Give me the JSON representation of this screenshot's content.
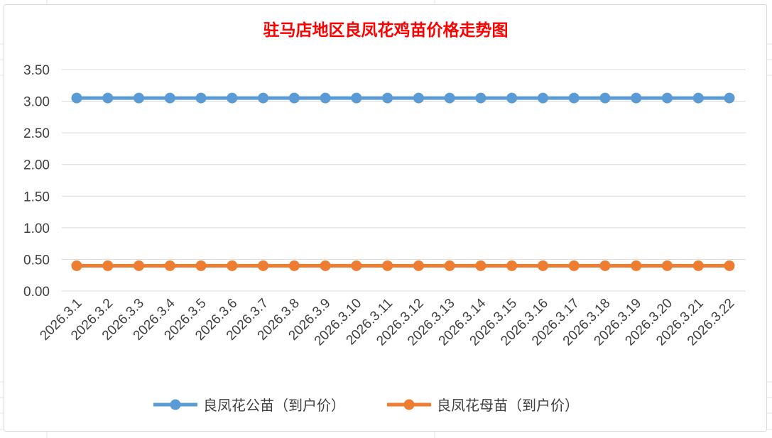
{
  "chart_data": {
    "type": "line",
    "title": "驻马店地区良凤花鸡苗价格走势图",
    "categories": [
      "2026.3.1",
      "2026.3.2",
      "2026.3.3",
      "2026.3.4",
      "2026.3.5",
      "2026.3.6",
      "2026.3.7",
      "2026.3.8",
      "2026.3.9",
      "2026.3.10",
      "2026.3.11",
      "2026.3.12",
      "2026.3.13",
      "2026.3.14",
      "2026.3.15",
      "2026.3.16",
      "2026.3.17",
      "2026.3.18",
      "2026.3.19",
      "2026.3.20",
      "2026.3.21",
      "2026.3.22"
    ],
    "series": [
      {
        "name": "良凤花公苗（到户价）",
        "color": "#5b9bd5",
        "values": [
          3.05,
          3.05,
          3.05,
          3.05,
          3.05,
          3.05,
          3.05,
          3.05,
          3.05,
          3.05,
          3.05,
          3.05,
          3.05,
          3.05,
          3.05,
          3.05,
          3.05,
          3.05,
          3.05,
          3.05,
          3.05,
          3.05
        ]
      },
      {
        "name": "良凤花母苗（到户价）",
        "color": "#ed7d31",
        "values": [
          0.4,
          0.4,
          0.4,
          0.4,
          0.4,
          0.4,
          0.4,
          0.4,
          0.4,
          0.4,
          0.4,
          0.4,
          0.4,
          0.4,
          0.4,
          0.4,
          0.4,
          0.4,
          0.4,
          0.4,
          0.4,
          0.4
        ]
      }
    ],
    "yticks": [
      "0.00",
      "0.50",
      "1.00",
      "1.50",
      "2.00",
      "2.50",
      "3.00",
      "3.50"
    ],
    "ylim": [
      0,
      3.5
    ],
    "xlabel": "",
    "ylabel": "",
    "grid": true,
    "legend": "bottom",
    "title_color": "#ff0000"
  }
}
